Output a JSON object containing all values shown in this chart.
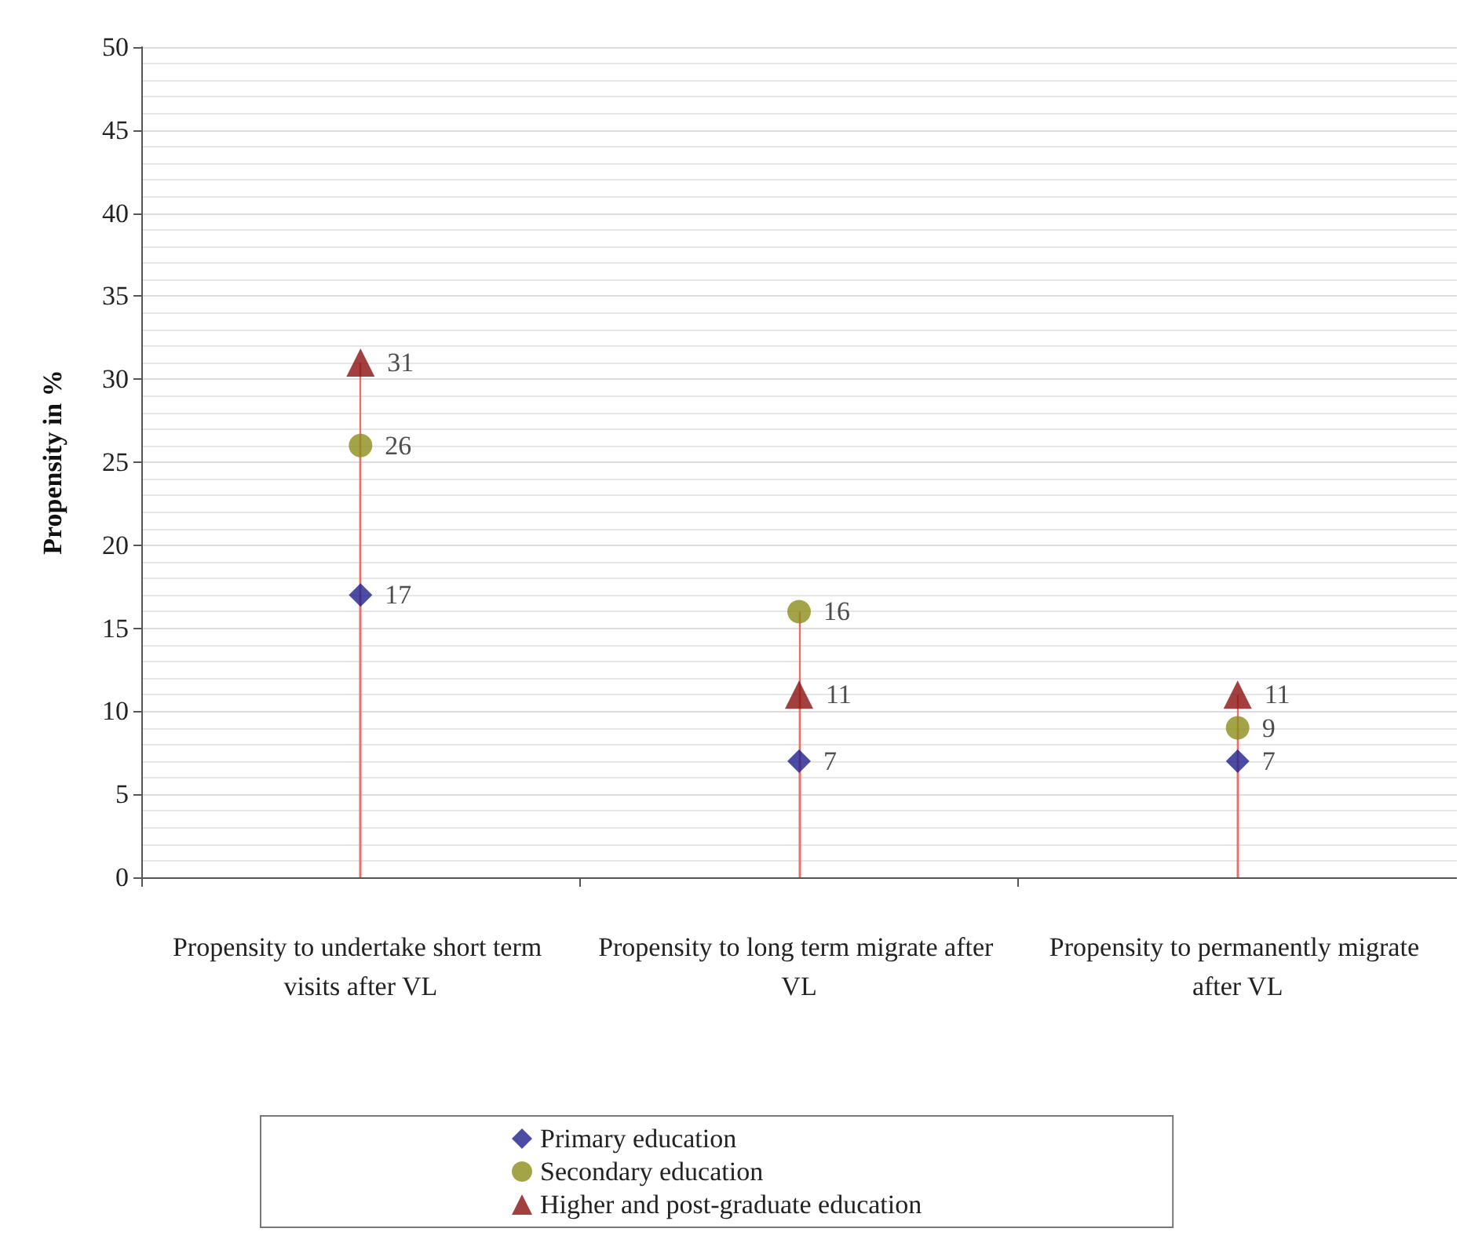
{
  "chart_data": {
    "type": "lollipop",
    "ylabel": "Propensity in %",
    "categories": [
      "Propensity to undertake short term visits after VL",
      "Propensity to long term migrate after VL",
      "Propensity to permanently migrate after VL"
    ],
    "series": [
      {
        "name": "Primary education",
        "color": "#1f1f8f",
        "marker": "diamond",
        "values": [
          17,
          7,
          7
        ]
      },
      {
        "name": "Secondary education",
        "color": "#8c8c1a",
        "marker": "circle",
        "values": [
          26,
          16,
          9
        ]
      },
      {
        "name": "Higher and post-graduate education",
        "color": "#8b1010",
        "marker": "triangle",
        "values": [
          31,
          11,
          11
        ]
      }
    ],
    "ylim": [
      0,
      50
    ],
    "yticks": [
      0,
      5,
      10,
      15,
      20,
      25,
      30,
      35,
      40,
      45,
      50
    ],
    "grid": true,
    "data_labels": true,
    "legend": "bottom"
  }
}
